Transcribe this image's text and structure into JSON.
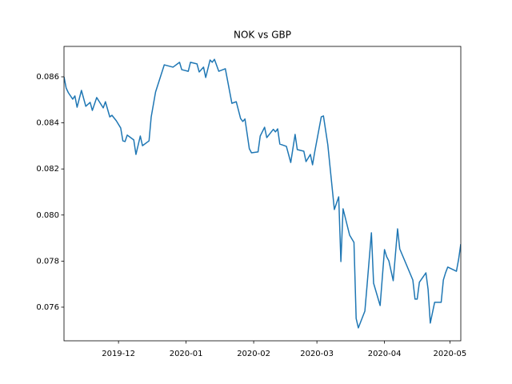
{
  "chart_data": {
    "type": "line",
    "title": "NOK vs GBP",
    "color": "#1f77b4",
    "x": [
      18206,
      18207,
      18208,
      18210,
      18211,
      18212,
      18214,
      18216,
      18218,
      18219,
      18221,
      18224,
      18225,
      18227,
      18228,
      18230,
      18232,
      18233,
      18234,
      18235,
      18238,
      18239,
      18241,
      18242,
      18245,
      18246,
      18248,
      18252,
      18256,
      18259,
      18260,
      18263,
      18264,
      18267,
      18268,
      18270,
      18271,
      18273,
      18274,
      18275,
      18277,
      18280,
      18283,
      18285,
      18287,
      18288,
      18289,
      18291,
      18292,
      18295,
      18296,
      18298,
      18299,
      18302,
      18303,
      18304,
      18305,
      18308,
      18310,
      18312,
      18313,
      18316,
      18317,
      18319,
      18320,
      18321,
      18324,
      18325,
      18327,
      18330,
      18332,
      18333,
      18334,
      18337,
      18339,
      18340,
      18341,
      18344,
      18345,
      18347,
      18348,
      18351,
      18353,
      18354,
      18355,
      18357,
      18359,
      18360,
      18366,
      18367,
      18368,
      18369,
      18372,
      18373,
      18374,
      18376,
      18379,
      18380,
      18381,
      18382,
      18386,
      18387,
      18388
    ],
    "values": [
      0.086,
      0.08551,
      0.08531,
      0.08503,
      0.08517,
      0.08468,
      0.08541,
      0.08472,
      0.08489,
      0.08454,
      0.0851,
      0.08465,
      0.08492,
      0.08426,
      0.08433,
      0.08409,
      0.08378,
      0.08322,
      0.08319,
      0.08347,
      0.08326,
      0.08263,
      0.08343,
      0.08301,
      0.08322,
      0.08426,
      0.08534,
      0.08652,
      0.08642,
      0.08663,
      0.08631,
      0.08624,
      0.08663,
      0.08656,
      0.08621,
      0.08642,
      0.08597,
      0.08673,
      0.08663,
      0.08676,
      0.08624,
      0.08635,
      0.08485,
      0.08492,
      0.08419,
      0.08406,
      0.08417,
      0.08288,
      0.0827,
      0.08274,
      0.08343,
      0.08381,
      0.08336,
      0.08372,
      0.08361,
      0.08374,
      0.08308,
      0.08298,
      0.08228,
      0.0835,
      0.08284,
      0.08277,
      0.08232,
      0.08263,
      0.08218,
      0.08274,
      0.08426,
      0.0843,
      0.08305,
      0.08024,
      0.08079,
      0.07798,
      0.08027,
      0.07913,
      0.07881,
      0.07551,
      0.0751,
      0.07583,
      0.07694,
      0.07923,
      0.07704,
      0.07607,
      0.0785,
      0.07819,
      0.07801,
      0.07715,
      0.0794,
      0.07853,
      0.07718,
      0.07635,
      0.07635,
      0.07708,
      0.07749,
      0.07677,
      0.07531,
      0.07621,
      0.07621,
      0.07718,
      0.07749,
      0.07774,
      0.07756,
      0.07808,
      0.07874
    ],
    "xlim": [
      18206,
      18388
    ],
    "xticks": [
      {
        "value": 18231,
        "label": "2019-12"
      },
      {
        "value": 18262,
        "label": "2020-01"
      },
      {
        "value": 18293,
        "label": "2020-02"
      },
      {
        "value": 18322,
        "label": "2020-03"
      },
      {
        "value": 18353,
        "label": "2020-04"
      },
      {
        "value": 18383,
        "label": "2020-05"
      }
    ],
    "ylim": [
      0.07454,
      0.08732
    ],
    "yticks": [
      0.076,
      0.078,
      {
        "value": 0.08,
        "label": "0.080"
      },
      0.082,
      0.084,
      0.086
    ]
  }
}
